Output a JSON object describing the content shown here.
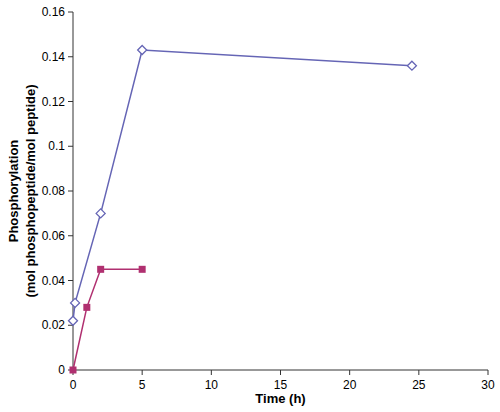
{
  "chart_data": {
    "type": "line",
    "x_label": "Time (h)",
    "y_label": "Phosphorylation\n(mol phosphopeptide/mol peptide)",
    "xlim": [
      0,
      30
    ],
    "xticks": [
      0,
      5,
      10,
      15,
      20,
      25,
      30
    ],
    "ylim": [
      0,
      0.16
    ],
    "yticks": [
      0,
      0.02,
      0.04,
      0.06,
      0.08,
      0.1,
      0.12,
      0.14,
      0.16
    ],
    "grid": false,
    "series": [
      {
        "color": "#6565b5",
        "marker": "diamond",
        "x": [
          0,
          0.15,
          2,
          5,
          24.5
        ],
        "values": [
          0.022,
          0.03,
          0.07,
          0.143,
          0.136
        ]
      },
      {
        "color": "#b03070",
        "marker": "square",
        "x": [
          0,
          1,
          2,
          5
        ],
        "values": [
          0,
          0.028,
          0.045,
          0.045
        ]
      }
    ]
  }
}
